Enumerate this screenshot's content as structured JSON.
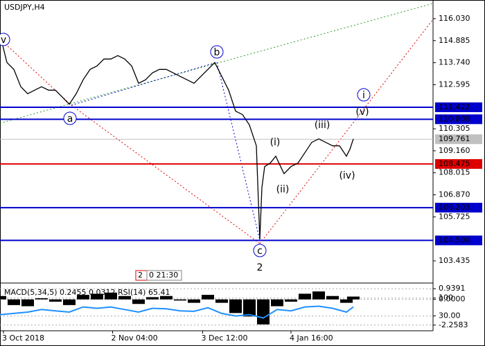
{
  "chart_data": [
    {
      "type": "line",
      "title": "USDJPY,H4",
      "color": "#000000",
      "xlim": [
        0,
        125
      ],
      "ylim": [
        102.32,
        117.0
      ],
      "xticks": [
        {
          "value": 1,
          "label": "3 Oct 2018"
        },
        {
          "value": 32.5,
          "label": "2 Nov 04:00"
        },
        {
          "value": 58.5,
          "label": "3 Dec 12:00"
        },
        {
          "value": 84,
          "label": "4 Jan 16:00"
        }
      ],
      "yticks": [
        {
          "value": 116.03,
          "label": "116.030"
        },
        {
          "value": 114.885,
          "label": "114.885"
        },
        {
          "value": 113.74,
          "label": "113.740"
        },
        {
          "value": 112.595,
          "label": "112.595"
        },
        {
          "value": 110.305,
          "label": "110.305"
        },
        {
          "value": 109.16,
          "label": "109.160"
        },
        {
          "value": 108.015,
          "label": "108.015"
        },
        {
          "value": 106.87,
          "label": "106.870"
        },
        {
          "value": 105.725,
          "label": "105.725"
        },
        {
          "value": 103.435,
          "label": "103.435"
        }
      ],
      "levels": [
        {
          "value": 111.422,
          "label": "111.422",
          "color": "#0000cc"
        },
        {
          "value": 110.8,
          "label": "110.800",
          "color": "#0000cc"
        },
        {
          "value": 109.761,
          "label": "109.761",
          "color": "#c0c0c0"
        },
        {
          "value": 108.475,
          "label": "108.475",
          "color": "#dd0000"
        },
        {
          "value": 106.203,
          "label": "106.203",
          "color": "#0000cc"
        },
        {
          "value": 104.5,
          "label": "104.500",
          "color": "#0000cc"
        }
      ],
      "x": [
        0,
        2,
        4,
        6,
        8,
        10,
        12,
        14,
        16,
        18,
        20,
        22,
        24,
        26,
        28,
        30,
        32,
        34,
        36,
        38,
        40,
        42,
        44,
        46,
        48,
        50,
        52,
        54,
        56,
        58,
        60,
        62,
        64,
        66,
        68,
        70,
        72,
        74,
        75,
        75.6,
        76.4,
        78,
        79.6,
        81,
        82,
        84,
        86,
        88,
        90,
        92,
        94,
        96,
        98,
        100,
        101,
        102
      ],
      "values": [
        115.2,
        113.75,
        113.39,
        112.49,
        112.13,
        112.31,
        112.49,
        112.31,
        112.31,
        111.95,
        111.58,
        112.13,
        112.85,
        113.39,
        113.57,
        113.93,
        113.93,
        114.11,
        113.93,
        113.57,
        112.67,
        112.85,
        113.21,
        113.39,
        113.39,
        113.21,
        113.03,
        112.85,
        112.67,
        113.03,
        113.39,
        113.75,
        113.03,
        112.31,
        111.22,
        111.04,
        110.5,
        109.42,
        104.55,
        107.25,
        108.34,
        108.52,
        108.88,
        108.34,
        107.97,
        108.34,
        108.52,
        109.06,
        109.6,
        109.78,
        109.6,
        109.42,
        109.42,
        108.88,
        109.24,
        109.78
      ],
      "annotations": [
        {
          "text": "v",
          "color": "#0000cc",
          "circled": true
        },
        {
          "text": "a",
          "color": "#0000cc",
          "circled": true
        },
        {
          "text": "b",
          "color": "#0000cc",
          "circled": true
        },
        {
          "text": "c",
          "color": "#0000cc",
          "circled": true
        },
        {
          "text": "i",
          "color": "#0000cc",
          "circled": true
        },
        {
          "text": "(v)",
          "color": "#dd0000",
          "circled": false
        },
        {
          "text": "(iii)",
          "color": "#dd0000",
          "circled": false
        },
        {
          "text": "(i)",
          "color": "#dd0000",
          "circled": false
        },
        {
          "text": "(ii)",
          "color": "#dd0000",
          "circled": false
        },
        {
          "text": "(iv)",
          "color": "#dd0000",
          "circled": false
        },
        {
          "text": "2",
          "color": "#aa2222",
          "circled": false
        }
      ],
      "time_markers": [
        {
          "text": "2",
          "color": "#dd0000"
        },
        {
          "text": "0 21:30",
          "color": "#808080"
        }
      ]
    },
    {
      "type": "bar",
      "title": "MACD(5,34,5) 0.2455 0.0312 RSI(14) 65.41",
      "xlim": [
        0,
        125
      ],
      "ylim": [
        -2.76,
        1.38
      ],
      "y2lim": [
        -28,
        156
      ],
      "yticks": [
        {
          "value": 0.9391,
          "label": "0.9391"
        },
        {
          "value": 0,
          "label": "0.0000"
        },
        {
          "value": -2.2583,
          "label": "-2.2583"
        }
      ],
      "y2ticks": [
        {
          "value": 100,
          "label": "100"
        },
        {
          "value": 30,
          "label": "30.00"
        }
      ],
      "x": [
        0,
        4,
        8,
        12,
        16,
        20,
        24,
        28,
        32,
        36,
        40,
        44,
        48,
        52,
        56,
        60,
        64,
        68,
        72,
        76,
        80,
        84,
        88,
        92,
        96,
        100,
        102
      ],
      "bars": {
        "color": "#000000",
        "values": [
          0.3,
          -0.5,
          -0.6,
          0.1,
          -0.2,
          -0.5,
          0.4,
          0.5,
          0.6,
          0.3,
          -0.4,
          0.2,
          0.3,
          -0.1,
          -0.3,
          0.4,
          -0.3,
          -1.2,
          -1.5,
          -2.2,
          -0.6,
          -0.2,
          0.5,
          0.7,
          0.3,
          -0.3,
          0.25
        ]
      },
      "line": {
        "color": "#1e90ff",
        "axis": "y2",
        "values": [
          35,
          40,
          45,
          55,
          50,
          45,
          65,
          60,
          65,
          55,
          45,
          60,
          58,
          50,
          48,
          62,
          40,
          30,
          35,
          22,
          55,
          50,
          65,
          68,
          60,
          45,
          65.41
        ]
      }
    }
  ]
}
